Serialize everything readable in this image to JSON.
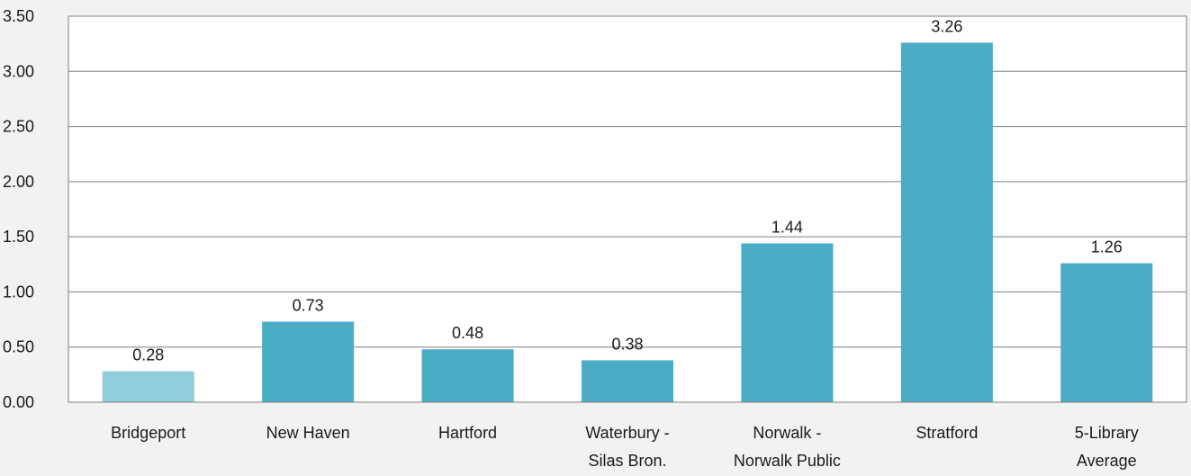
{
  "chart_data": {
    "type": "bar",
    "title": "",
    "xlabel": "",
    "ylabel": "",
    "ylim": [
      0,
      3.5
    ],
    "yticks": [
      "0.00",
      "0.50",
      "1.00",
      "1.50",
      "2.00",
      "2.50",
      "3.00",
      "3.50"
    ],
    "categories": [
      [
        "Bridgeport"
      ],
      [
        "New Haven"
      ],
      [
        "Hartford"
      ],
      [
        "Waterbury -",
        "Silas Bron."
      ],
      [
        "Norwalk -",
        "Norwalk Public"
      ],
      [
        "Stratford"
      ],
      [
        "5-Library",
        "Average"
      ]
    ],
    "values": [
      0.28,
      0.73,
      0.48,
      0.38,
      1.44,
      3.26,
      1.26
    ],
    "value_labels": [
      "0.28",
      "0.73",
      "0.48",
      "0.38",
      "1.44",
      "3.26",
      "1.26"
    ],
    "bar_colors": [
      "#92cddc",
      "#4bacc6",
      "#4bacc6",
      "#4bacc6",
      "#4bacc6",
      "#4bacc6",
      "#4bacc6"
    ],
    "grid": true,
    "legend": "none"
  }
}
